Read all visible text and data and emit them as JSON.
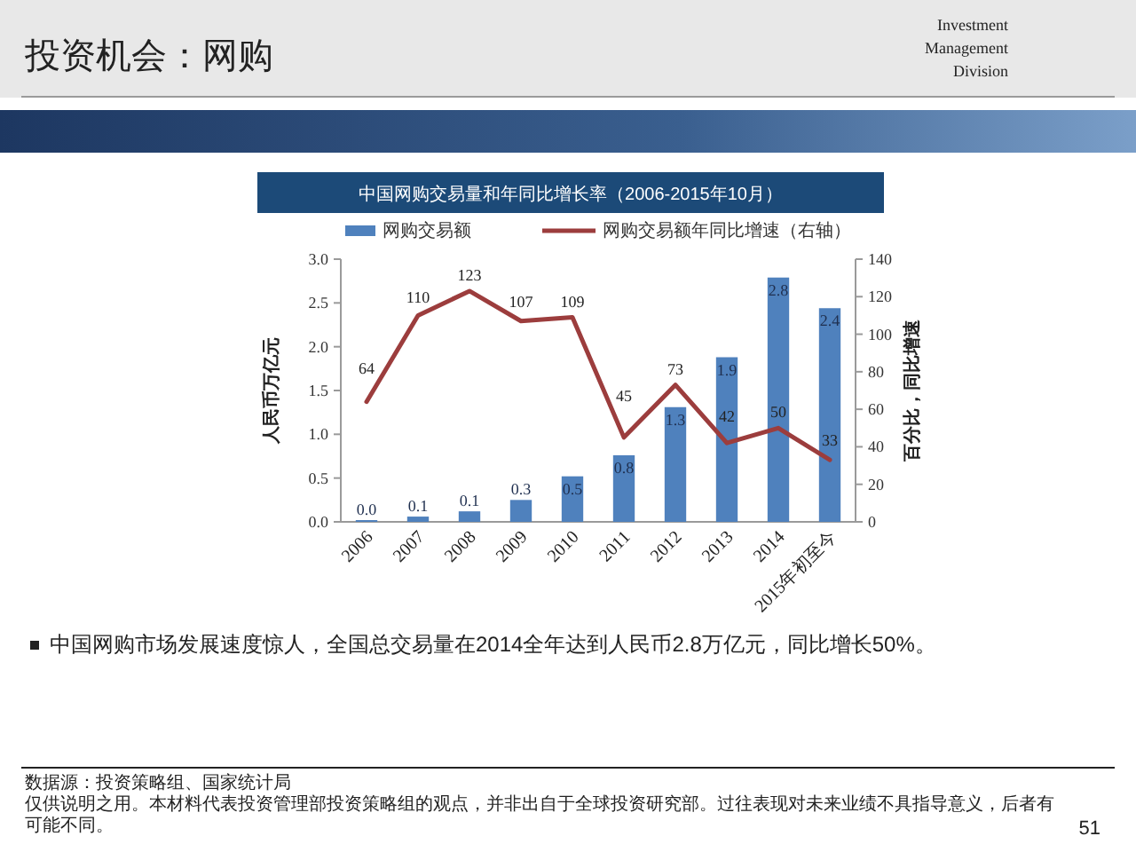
{
  "chart_data": {
    "type": "bar",
    "title": "中国网购交易量和年同比增长率（2006-2015年10月）",
    "categories": [
      "2006",
      "2007",
      "2008",
      "2009",
      "2010",
      "2011",
      "2012",
      "2013",
      "2014",
      "2015年初至今"
    ],
    "series": [
      {
        "name": "网购交易额",
        "color": "#4f81bd",
        "values": [
          0.02,
          0.06,
          0.12,
          0.25,
          0.52,
          0.76,
          1.31,
          1.88,
          2.79,
          2.44
        ],
        "value_labels": [
          "0.0",
          "0.1",
          "0.1",
          "0.3",
          "0.5",
          "0.8",
          "1.3",
          "1.9",
          "2.8",
          "2.4"
        ]
      },
      {
        "name": "网购交易额年同比增速（右轴）",
        "type": "line",
        "axis": "y2",
        "color": "#9c3d3d",
        "values": [
          64,
          110,
          123,
          107,
          109,
          45,
          73,
          42,
          50,
          33
        ],
        "value_labels": [
          "64",
          "110",
          "123",
          "107",
          "109",
          "45",
          "73",
          "42",
          "50",
          "33"
        ]
      }
    ],
    "ylabel": "人民币万亿元",
    "y2label": "百分比，同比增速",
    "ylim": [
      0,
      3
    ],
    "yticks": [
      {
        "value": 0,
        "label": "0.0"
      },
      {
        "value": 0.5,
        "label": "0.5"
      },
      {
        "value": 1,
        "label": "1.0"
      },
      {
        "value": 1.5,
        "label": "1.5"
      },
      {
        "value": 2,
        "label": "2.0"
      },
      {
        "value": 2.5,
        "label": "2.5"
      },
      {
        "value": 3,
        "label": "3.0"
      }
    ],
    "y2lim": [
      0,
      140
    ],
    "y2ticks": [
      0,
      20,
      40,
      60,
      80,
      100,
      120,
      140
    ],
    "legend": "top",
    "annotations": [
      "投资机会：网购",
      "Investment\nManagement\nDivision",
      "中国网购市场发展速度惊人，全国总交易量在2014全年达到人民币2.8万亿元，同比增长50%。",
      "数据源：投资策略组、国家统计局",
      "仅供说明之用。本材料代表投资管理部投资策略组的观点，并非出自于全球投资研究部。过往表现对未来业绩不具指导意义，后者有可能不同。",
      "51"
    ]
  }
}
